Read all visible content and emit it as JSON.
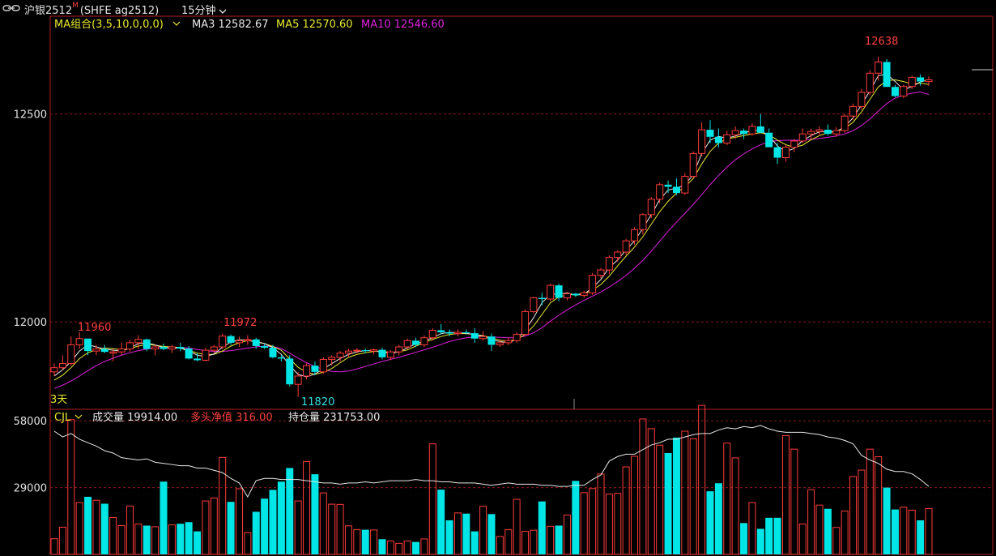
{
  "header": {
    "symbol": "沪银2512",
    "badge": "M",
    "code": "(SHFE ag2512)",
    "period": "15分钟",
    "chevron_icon": "chevron-down-icon",
    "link_icon": "link-icon"
  },
  "ma_legend": {
    "indicator": "MA组合(3,5,10,0,0,0)",
    "ma3": "MA3 12582.67",
    "ma5": "MA5 12570.60",
    "ma10": "MA10 12546.60"
  },
  "vol_legend": {
    "indicator": "CJL",
    "volume": "成交量 19914.00",
    "net_long": "多头净值 316.00",
    "open_interest": "持仓量 231753.00"
  },
  "annotations": {
    "left_days": "3天",
    "high1": "11960",
    "high2": "11972",
    "low1": "11820",
    "peak": "12638"
  },
  "colors": {
    "up": "#ff3b3b",
    "down": "#00e5e5",
    "ma3": "#e8e8e8",
    "ma5": "#e8e830",
    "ma10": "#e020e0",
    "grid": "#8b1a1a",
    "frame": "#b01e1e",
    "axis_text": "#e0e0e0"
  },
  "chart_data": [
    {
      "type": "candlestick",
      "interval": "15分钟",
      "y_axis_ticks": [
        12000,
        12500
      ],
      "ylim": [
        11790,
        12735
      ],
      "ohlc": [
        [
          11880,
          11900,
          11870,
          11890
        ],
        [
          11890,
          11920,
          11885,
          11900
        ],
        [
          11900,
          11965,
          11895,
          11945
        ],
        [
          11945,
          11975,
          11935,
          11960
        ],
        [
          11960,
          11960,
          11920,
          11930
        ],
        [
          11930,
          11945,
          11920,
          11935
        ],
        [
          11935,
          11945,
          11925,
          11928
        ],
        [
          11925,
          11935,
          11905,
          11928
        ],
        [
          11928,
          11950,
          11920,
          11935
        ],
        [
          11935,
          11958,
          11928,
          11950
        ],
        [
          11950,
          11968,
          11935,
          11958
        ],
        [
          11958,
          11960,
          11930,
          11935
        ],
        [
          11935,
          11945,
          11920,
          11940
        ],
        [
          11940,
          11948,
          11932,
          11935
        ],
        [
          11935,
          11945,
          11925,
          11940
        ],
        [
          11940,
          11950,
          11930,
          11936
        ],
        [
          11936,
          11942,
          11910,
          11912
        ],
        [
          11912,
          11925,
          11905,
          11908
        ],
        [
          11908,
          11938,
          11905,
          11932
        ],
        [
          11932,
          11945,
          11925,
          11940
        ],
        [
          11940,
          11972,
          11935,
          11966
        ],
        [
          11966,
          11970,
          11945,
          11950
        ],
        [
          11950,
          11965,
          11940,
          11955
        ],
        [
          11955,
          11968,
          11945,
          11958
        ],
        [
          11958,
          11962,
          11935,
          11942
        ],
        [
          11942,
          11948,
          11935,
          11938
        ],
        [
          11938,
          11945,
          11912,
          11915
        ],
        [
          11915,
          11920,
          11905,
          11912
        ],
        [
          11912,
          11920,
          11845,
          11850
        ],
        [
          11850,
          11880,
          11820,
          11870
        ],
        [
          11870,
          11900,
          11862,
          11895
        ],
        [
          11895,
          11905,
          11872,
          11880
        ],
        [
          11880,
          11915,
          11875,
          11910
        ],
        [
          11910,
          11920,
          11895,
          11915
        ],
        [
          11915,
          11930,
          11905,
          11925
        ],
        [
          11925,
          11935,
          11915,
          11930
        ],
        [
          11930,
          11937,
          11925,
          11932
        ],
        [
          11932,
          11936,
          11925,
          11930
        ],
        [
          11930,
          11936,
          11922,
          11933
        ],
        [
          11933,
          11938,
          11910,
          11915
        ],
        [
          11915,
          11932,
          11908,
          11928
        ],
        [
          11928,
          11945,
          11920,
          11940
        ],
        [
          11940,
          11960,
          11935,
          11955
        ],
        [
          11955,
          11962,
          11940,
          11945
        ],
        [
          11945,
          11968,
          11940,
          11962
        ],
        [
          11962,
          11985,
          11955,
          11980
        ],
        [
          11980,
          11995,
          11970,
          11975
        ],
        [
          11975,
          11982,
          11965,
          11972
        ],
        [
          11972,
          11982,
          11965,
          11975
        ],
        [
          11975,
          11982,
          11970,
          11973
        ],
        [
          11973,
          11985,
          11950,
          11960
        ],
        [
          11960,
          11978,
          11955,
          11965
        ],
        [
          11965,
          11972,
          11930,
          11945
        ],
        [
          11945,
          11958,
          11940,
          11950
        ],
        [
          11950,
          11962,
          11944,
          11955
        ],
        [
          11955,
          11975,
          11950,
          11970
        ],
        [
          11970,
          12030,
          11968,
          12025
        ],
        [
          12025,
          12060,
          12020,
          12058
        ],
        [
          12058,
          12070,
          12040,
          12055
        ],
        [
          12055,
          12092,
          12050,
          12088
        ],
        [
          12088,
          12092,
          12050,
          12058
        ],
        [
          12058,
          12072,
          12052,
          12068
        ],
        [
          12068,
          12070,
          12060,
          12064
        ],
        [
          12064,
          12075,
          12058,
          12070
        ],
        [
          12070,
          12118,
          12065,
          12112
        ],
        [
          12112,
          12130,
          12105,
          12125
        ],
        [
          12125,
          12160,
          12115,
          12155
        ],
        [
          12155,
          12172,
          12145,
          12168
        ],
        [
          12168,
          12200,
          12160,
          12195
        ],
        [
          12195,
          12228,
          12185,
          12222
        ],
        [
          12222,
          12262,
          12210,
          12258
        ],
        [
          12258,
          12300,
          12250,
          12295
        ],
        [
          12295,
          12335,
          12285,
          12330
        ],
        [
          12330,
          12340,
          12310,
          12325
        ],
        [
          12325,
          12345,
          12305,
          12310
        ],
        [
          12310,
          12358,
          12305,
          12350
        ],
        [
          12350,
          12410,
          12345,
          12405
        ],
        [
          12405,
          12480,
          12398,
          12462
        ],
        [
          12462,
          12485,
          12430,
          12445
        ],
        [
          12445,
          12465,
          12420,
          12430
        ],
        [
          12430,
          12460,
          12425,
          12450
        ],
        [
          12450,
          12470,
          12440,
          12460
        ],
        [
          12460,
          12465,
          12440,
          12452
        ],
        [
          12452,
          12478,
          12448,
          12470
        ],
        [
          12470,
          12500,
          12460,
          12455
        ],
        [
          12455,
          12465,
          12420,
          12420
        ],
        [
          12420,
          12430,
          12380,
          12395
        ],
        [
          12395,
          12425,
          12385,
          12420
        ],
        [
          12420,
          12440,
          12408,
          12435
        ],
        [
          12435,
          12465,
          12430,
          12452
        ],
        [
          12452,
          12465,
          12440,
          12458
        ],
        [
          12458,
          12470,
          12450,
          12462
        ],
        [
          12462,
          12475,
          12448,
          12452
        ],
        [
          12452,
          12468,
          12445,
          12460
        ],
        [
          12460,
          12500,
          12455,
          12495
        ],
        [
          12495,
          12525,
          12485,
          12518
        ],
        [
          12518,
          12560,
          12510,
          12552
        ],
        [
          12552,
          12605,
          12545,
          12598
        ],
        [
          12598,
          12638,
          12580,
          12625
        ],
        [
          12625,
          12632,
          12565,
          12565
        ],
        [
          12565,
          12570,
          12540,
          12543
        ],
        [
          12543,
          12570,
          12538,
          12566
        ],
        [
          12566,
          12592,
          12560,
          12588
        ],
        [
          12588,
          12595,
          12568,
          12578
        ],
        [
          12578,
          12590,
          12568,
          12582
        ]
      ],
      "ma": {
        "MA3": [
          11870,
          11885,
          11905,
          11930,
          11945,
          11940,
          11935,
          11932,
          11930,
          11937,
          11948,
          11950,
          11945,
          11938,
          11937,
          11937,
          11930,
          11920,
          11917,
          11923,
          11939,
          11952,
          11957,
          11956,
          11952,
          11948,
          11938,
          11922,
          11895,
          11874,
          11868,
          11875,
          11887,
          11900,
          11912,
          11922,
          11928,
          11931,
          11931,
          11927,
          11925,
          11928,
          11938,
          11947,
          11954,
          11962,
          11972,
          11975,
          11974,
          11973,
          11969,
          11966,
          11957,
          11953,
          11950,
          11958,
          11981,
          12010,
          12046,
          12067,
          12067,
          12070,
          12064,
          12067,
          12082,
          12102,
          12131,
          12149,
          12173,
          12195,
          12225,
          12258,
          12294,
          12317,
          12322,
          12329,
          12355,
          12405,
          12437,
          12446,
          12442,
          12447,
          12454,
          12461,
          12459,
          12448,
          12423,
          12410,
          12417,
          12436,
          12448,
          12457,
          12457,
          12458,
          12469,
          12491,
          12522,
          12556,
          12592,
          12596,
          12578,
          12558,
          12566,
          12577,
          12582
        ],
        "MA5": [
          11860,
          11872,
          11890,
          11912,
          11926,
          11933,
          11937,
          11936,
          11933,
          11936,
          11942,
          11946,
          11944,
          11941,
          11940,
          11938,
          11932,
          11925,
          11922,
          11922,
          11930,
          11942,
          11950,
          11955,
          11953,
          11948,
          11941,
          11932,
          11911,
          11891,
          11879,
          11874,
          11879,
          11888,
          11902,
          11915,
          11922,
          11926,
          11929,
          11929,
          11927,
          11928,
          11933,
          11942,
          11951,
          11958,
          11965,
          11970,
          11972,
          11972,
          11970,
          11967,
          11962,
          11956,
          11954,
          11958,
          11970,
          11990,
          12018,
          12046,
          12060,
          12065,
          12066,
          12068,
          12076,
          12090,
          12110,
          12135,
          12158,
          12180,
          12205,
          12235,
          12265,
          12290,
          12310,
          12325,
          12345,
          12380,
          12410,
          12430,
          12440,
          12444,
          12448,
          12452,
          12455,
          12450,
          12437,
          12426,
          12420,
          12425,
          12438,
          12448,
          12455,
          12458,
          12465,
          12480,
          12505,
          12535,
          12565,
          12580,
          12582,
          12578,
          12572,
          12574,
          12571
        ],
        "MA10": [
          11840,
          11848,
          11858,
          11870,
          11883,
          11895,
          11905,
          11913,
          11920,
          11926,
          11931,
          11935,
          11937,
          11938,
          11939,
          11939,
          11937,
          11934,
          11931,
          11929,
          11929,
          11931,
          11934,
          11937,
          11940,
          11942,
          11941,
          11936,
          11925,
          11913,
          11902,
          11893,
          11886,
          11881,
          11880,
          11882,
          11887,
          11893,
          11899,
          11905,
          11910,
          11915,
          11921,
          11927,
          11933,
          11939,
          11946,
          11953,
          11958,
          11962,
          11964,
          11965,
          11964,
          11963,
          11962,
          11962,
          11966,
          11974,
          11986,
          12002,
          12016,
          12029,
          12041,
          12052,
          12062,
          12072,
          12084,
          12097,
          12112,
          12129,
          12148,
          12170,
          12194,
          12218,
          12240,
          12261,
          12283,
          12306,
          12330,
          12352,
          12372,
          12390,
          12404,
          12416,
          12426,
          12433,
          12436,
          12437,
          12437,
          12437,
          12439,
          12441,
          12444,
          12447,
          12452,
          12460,
          12472,
          12488,
          12507,
          12525,
          12538,
          12545,
          12550,
          12553,
          12547
        ]
      }
    },
    {
      "type": "bar",
      "name": "成交量",
      "y_axis_ticks": [
        29000,
        58000
      ],
      "ylim": [
        0,
        63000
      ],
      "volume": [
        6800,
        11800,
        58500,
        22500,
        25000,
        23500,
        22000,
        16000,
        12500,
        21000,
        13200,
        12500,
        12000,
        31600,
        12800,
        13300,
        14000,
        10000,
        23200,
        24500,
        42100,
        22800,
        28500,
        9500,
        18500,
        24200,
        28000,
        31600,
        37500,
        23200,
        40300,
        34800,
        26700,
        21800,
        21700,
        12400,
        10700,
        10700,
        10600,
        6600,
        5800,
        4800,
        5800,
        5400,
        6700,
        48000,
        28100,
        14800,
        18000,
        17700,
        10000,
        20900,
        17500,
        7800,
        10700,
        23900,
        10000,
        10500,
        23000,
        12200,
        12500,
        17100,
        31900,
        26800,
        28600,
        34900,
        26200,
        26500,
        38000,
        42600,
        58800,
        54600,
        47400,
        44000,
        50700,
        53500,
        50200,
        64700,
        27400,
        30900,
        48300,
        41900,
        13600,
        22500,
        11100,
        15900,
        15900,
        51600,
        45700,
        13200,
        28100,
        21400,
        19800,
        11700,
        18800,
        33800,
        36600,
        45700,
        42400,
        29000,
        19500,
        20500,
        19200,
        14800,
        19900
      ],
      "open_interest": [
        53500,
        51000,
        52500,
        50000,
        48500,
        47000,
        45000,
        44000,
        42000,
        41500,
        41000,
        41500,
        40000,
        39500,
        39000,
        38500,
        38500,
        37500,
        37500,
        36500,
        35500,
        33000,
        31000,
        25000,
        32000,
        33000,
        33000,
        32500,
        32500,
        32500,
        32000,
        31500,
        31000,
        31000,
        30500,
        31000,
        31000,
        31500,
        31000,
        31500,
        32000,
        32000,
        32000,
        32500,
        32000,
        32000,
        31500,
        31500,
        31000,
        31000,
        31000,
        30500,
        30000,
        30500,
        31000,
        30500,
        30500,
        30500,
        30000,
        30000,
        29500,
        29500,
        30000,
        30000,
        32500,
        34500,
        40500,
        42500,
        43500,
        43500,
        45500,
        47500,
        48500,
        50000,
        50000,
        51000,
        52000,
        52500,
        52500,
        54000,
        55000,
        54500,
        55500,
        55000,
        56000,
        54500,
        53500,
        53000,
        53000,
        53000,
        52500,
        52000,
        51000,
        50500,
        49500,
        48000,
        43000,
        41000,
        39500,
        37000,
        36000,
        36000,
        35000,
        32500,
        29500
      ]
    }
  ]
}
